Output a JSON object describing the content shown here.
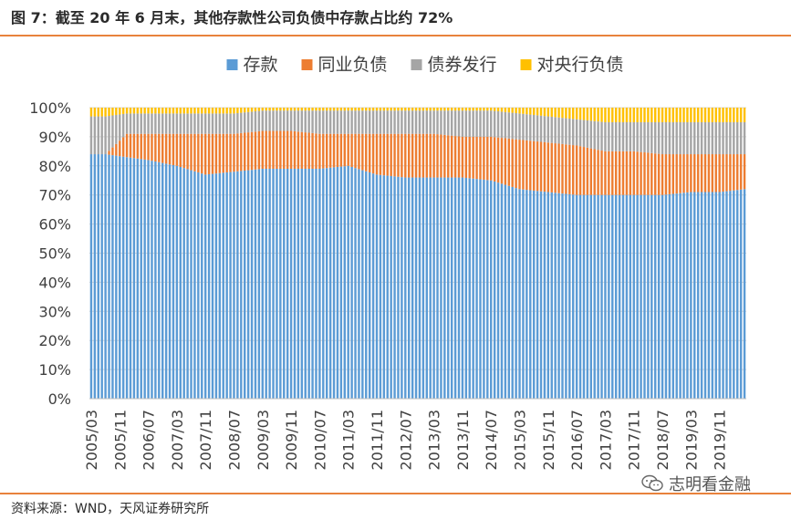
{
  "figure_title": "图 7：截至 20 年 6 月末，其他存款性公司负债中存款占比约 72%",
  "source_note": "资料来源：WND，天风证券研究所",
  "watermark": {
    "text": "志明看金融",
    "icon": "wechat-icon"
  },
  "chart_data": {
    "type": "bar",
    "stacked": true,
    "normalized": true,
    "title": "",
    "xlabel": "",
    "ylabel": "",
    "ylim": [
      0,
      100
    ],
    "yticks": [
      "0%",
      "10%",
      "20%",
      "30%",
      "40%",
      "50%",
      "60%",
      "70%",
      "80%",
      "90%",
      "100%"
    ],
    "grid": true,
    "legend": "top",
    "start": "2005/03",
    "tick_labels": [
      "2005/03",
      "2005/11",
      "2006/07",
      "2007/03",
      "2007/11",
      "2008/07",
      "2009/03",
      "2009/11",
      "2010/07",
      "2011/03",
      "2011/11",
      "2012/07",
      "2013/03",
      "2013/11",
      "2014/07",
      "2015/03",
      "2015/11",
      "2016/07",
      "2017/03",
      "2017/11",
      "2018/07",
      "2019/03",
      "2019/11"
    ],
    "series": [
      {
        "name": "存款",
        "color": "#5b9bd5",
        "keyframes": [
          [
            "2005/03",
            84
          ],
          [
            "2005/07",
            84
          ],
          [
            "2006/01",
            83
          ],
          [
            "2006/07",
            82
          ],
          [
            "2007/03",
            80
          ],
          [
            "2007/11",
            77
          ],
          [
            "2008/07",
            78
          ],
          [
            "2009/03",
            79
          ],
          [
            "2009/11",
            79
          ],
          [
            "2010/07",
            79
          ],
          [
            "2011/03",
            80
          ],
          [
            "2011/11",
            77
          ],
          [
            "2012/07",
            76
          ],
          [
            "2013/03",
            76
          ],
          [
            "2013/11",
            76
          ],
          [
            "2014/07",
            75
          ],
          [
            "2015/03",
            72
          ],
          [
            "2015/11",
            71
          ],
          [
            "2016/07",
            70
          ],
          [
            "2017/03",
            70
          ],
          [
            "2017/11",
            70
          ],
          [
            "2018/07",
            70
          ],
          [
            "2019/03",
            71
          ],
          [
            "2019/11",
            71
          ],
          [
            "2020/06",
            72
          ]
        ]
      },
      {
        "name": "同业负债",
        "color": "#ed7d31",
        "keyframes": [
          [
            "2005/03",
            0
          ],
          [
            "2005/07",
            0
          ],
          [
            "2006/01",
            8
          ],
          [
            "2006/07",
            9
          ],
          [
            "2007/03",
            11
          ],
          [
            "2007/11",
            14
          ],
          [
            "2008/07",
            13
          ],
          [
            "2009/03",
            13
          ],
          [
            "2009/11",
            13
          ],
          [
            "2010/07",
            12
          ],
          [
            "2011/03",
            11
          ],
          [
            "2011/11",
            14
          ],
          [
            "2012/07",
            15
          ],
          [
            "2013/03",
            15
          ],
          [
            "2013/11",
            14
          ],
          [
            "2014/07",
            15
          ],
          [
            "2015/03",
            17
          ],
          [
            "2015/11",
            17
          ],
          [
            "2016/07",
            17
          ],
          [
            "2017/03",
            15
          ],
          [
            "2017/11",
            15
          ],
          [
            "2018/07",
            14
          ],
          [
            "2019/03",
            13
          ],
          [
            "2019/11",
            13
          ],
          [
            "2020/06",
            12
          ]
        ]
      },
      {
        "name": "债券发行",
        "color": "#a5a5a5",
        "keyframes": [
          [
            "2005/03",
            13
          ],
          [
            "2005/07",
            13
          ],
          [
            "2006/01",
            7
          ],
          [
            "2006/07",
            7
          ],
          [
            "2007/03",
            7
          ],
          [
            "2007/11",
            7
          ],
          [
            "2008/07",
            7
          ],
          [
            "2009/03",
            7
          ],
          [
            "2009/11",
            7
          ],
          [
            "2010/07",
            8
          ],
          [
            "2011/03",
            8
          ],
          [
            "2011/11",
            8
          ],
          [
            "2012/07",
            8
          ],
          [
            "2013/03",
            8
          ],
          [
            "2013/11",
            9
          ],
          [
            "2014/07",
            9
          ],
          [
            "2015/03",
            9
          ],
          [
            "2015/11",
            9
          ],
          [
            "2016/07",
            9
          ],
          [
            "2017/03",
            10
          ],
          [
            "2017/11",
            10
          ],
          [
            "2018/07",
            11
          ],
          [
            "2019/03",
            11
          ],
          [
            "2019/11",
            11
          ],
          [
            "2020/06",
            11
          ]
        ]
      },
      {
        "name": "对央行负债",
        "color": "#ffc000",
        "keyframes": [
          [
            "2005/03",
            3
          ],
          [
            "2005/07",
            3
          ],
          [
            "2006/01",
            2
          ],
          [
            "2006/07",
            2
          ],
          [
            "2007/03",
            2
          ],
          [
            "2007/11",
            2
          ],
          [
            "2008/07",
            2
          ],
          [
            "2009/03",
            1
          ],
          [
            "2009/11",
            1
          ],
          [
            "2010/07",
            1
          ],
          [
            "2011/03",
            1
          ],
          [
            "2011/11",
            1
          ],
          [
            "2012/07",
            1
          ],
          [
            "2013/03",
            1
          ],
          [
            "2013/11",
            1
          ],
          [
            "2014/07",
            1
          ],
          [
            "2015/03",
            2
          ],
          [
            "2015/11",
            3
          ],
          [
            "2016/07",
            4
          ],
          [
            "2017/03",
            5
          ],
          [
            "2017/11",
            5
          ],
          [
            "2018/07",
            5
          ],
          [
            "2019/03",
            5
          ],
          [
            "2019/11",
            5
          ],
          [
            "2020/06",
            5
          ]
        ]
      }
    ]
  }
}
